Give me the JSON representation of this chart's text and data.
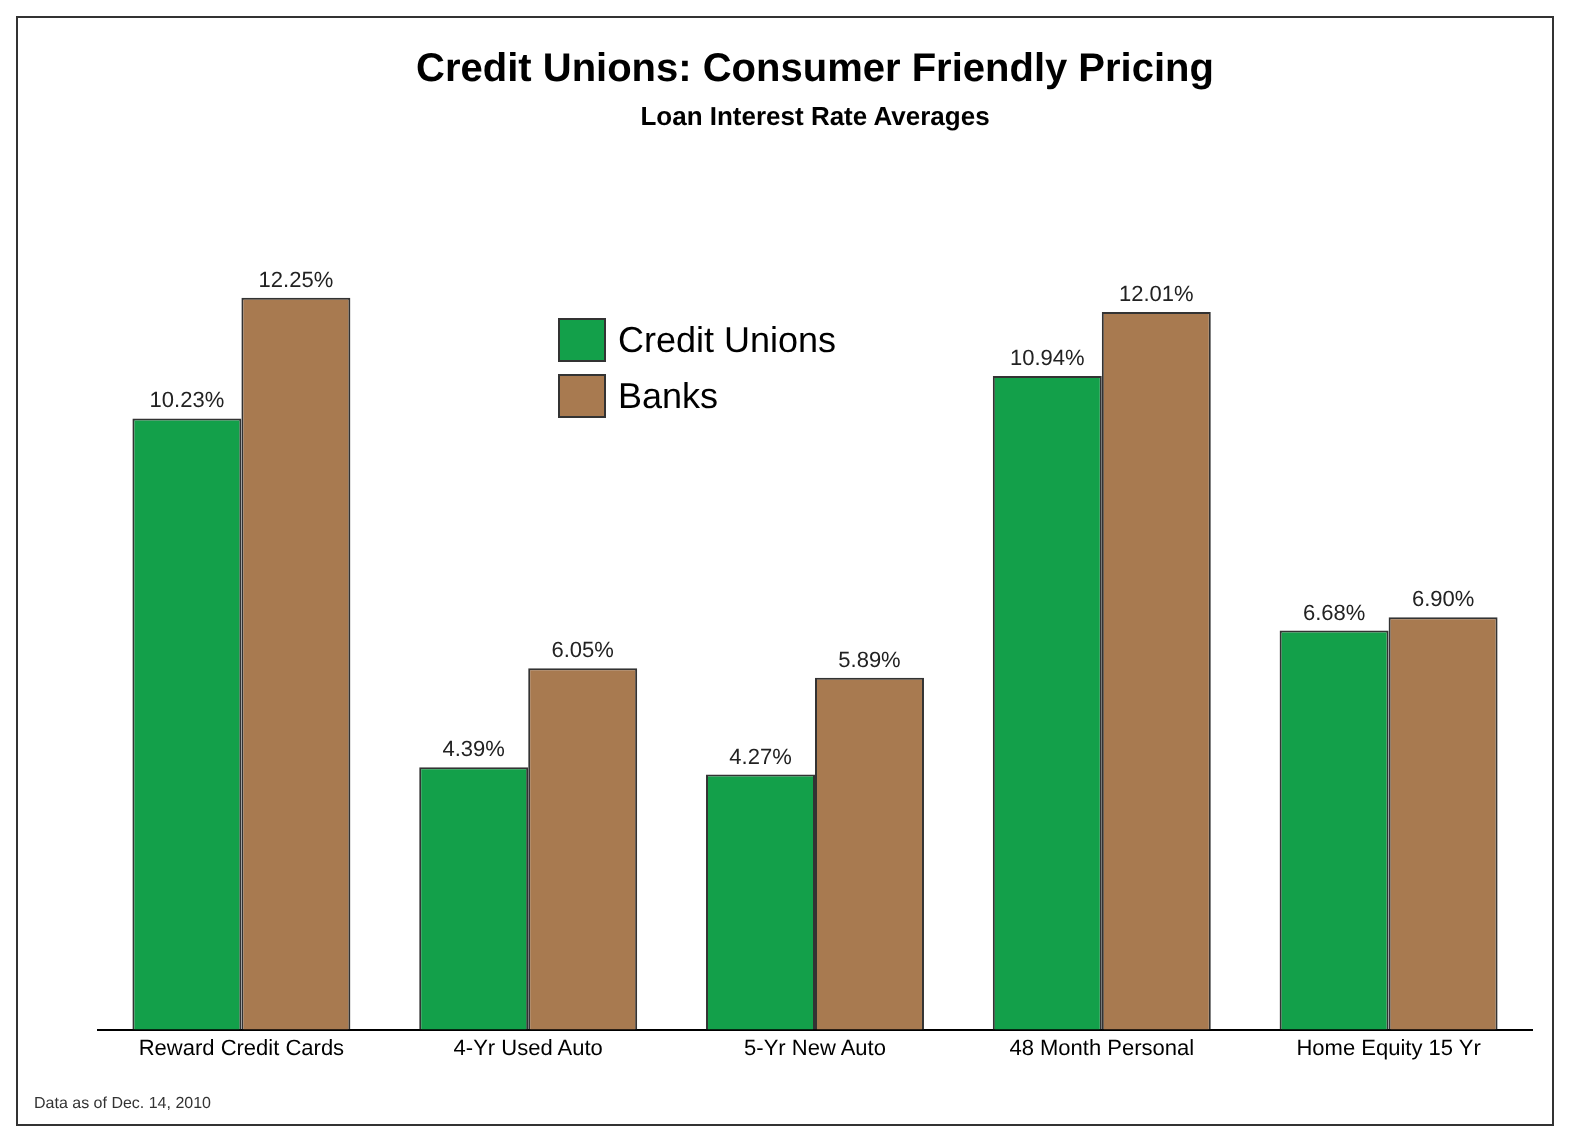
{
  "chart_data": {
    "type": "bar",
    "title": "Credit Unions: Consumer Friendly Pricing",
    "subtitle": "Loan Interest Rate Averages",
    "categories": [
      "Reward Credit Cards",
      "4-Yr Used Auto",
      "5-Yr New Auto",
      "48 Month Personal",
      "Home Equity 15 Yr"
    ],
    "series": [
      {
        "name": "Credit Unions",
        "color": "#13a04a",
        "values": [
          10.23,
          4.39,
          4.27,
          10.94,
          6.68
        ],
        "value_labels": [
          "10.23%",
          "4.39%",
          "4.27%",
          "10.94%",
          "6.68%"
        ]
      },
      {
        "name": "Banks",
        "color": "#a87a50",
        "values": [
          12.25,
          6.05,
          5.89,
          12.01,
          6.9
        ],
        "value_labels": [
          "12.25%",
          "6.05%",
          "5.89%",
          "12.01%",
          "6.90%"
        ]
      }
    ],
    "legend": "top left",
    "grid": false,
    "tick_labels": "x",
    "annotations": [
      "Data as of Dec. 14, 2010"
    ]
  }
}
